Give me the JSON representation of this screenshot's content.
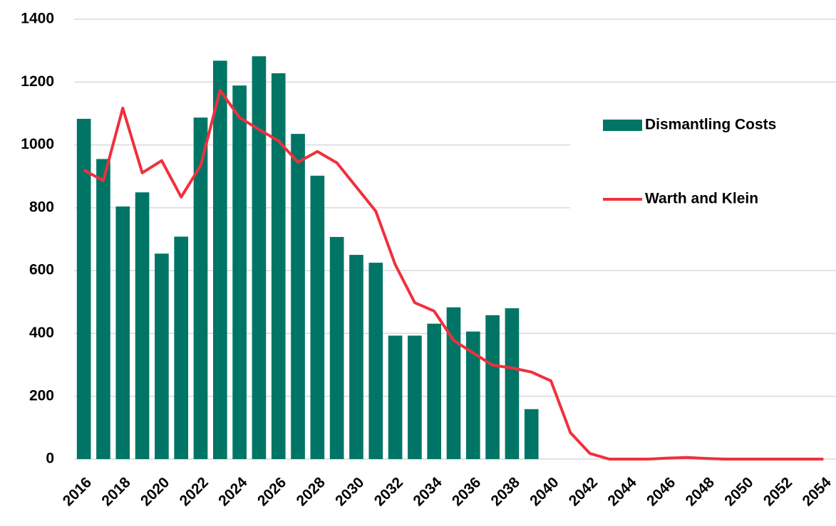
{
  "chart_data": {
    "type": "bar",
    "categories": [
      "2016",
      null,
      "2018",
      null,
      "2020",
      null,
      "2022",
      null,
      "2024",
      null,
      "2026",
      null,
      "2028",
      null,
      "2030",
      null,
      "2032",
      null,
      "2034",
      null,
      "2036",
      null,
      "2038",
      null,
      "2040",
      null,
      "2042",
      null,
      "2044",
      null,
      "2046",
      null,
      "2048",
      null,
      "2050",
      null,
      "2052",
      null,
      "2054"
    ],
    "series": [
      {
        "name": "Dismantling Costs",
        "type": "bar",
        "color": "#007566",
        "values": [
          1083,
          955,
          804,
          849,
          654,
          708,
          1087,
          1268,
          1189,
          1282,
          1228,
          1035,
          902,
          707,
          650,
          625,
          393,
          393,
          431,
          483,
          406,
          458,
          480,
          159,
          null,
          null,
          null,
          null,
          null,
          null,
          null,
          null,
          null,
          null,
          null,
          null,
          null,
          null,
          null
        ]
      },
      {
        "name": "Warth and Klein",
        "type": "line",
        "color": "#f0303c",
        "values": [
          920,
          886,
          1117,
          911,
          950,
          834,
          934,
          1174,
          1087,
          1049,
          1013,
          945,
          979,
          943,
          866,
          789,
          619,
          498,
          471,
          378,
          338,
          299,
          290,
          277,
          249,
          84,
          18,
          0,
          0,
          0,
          3,
          5,
          2,
          0,
          0,
          0,
          0,
          0,
          0
        ]
      }
    ],
    "ylim": [
      0,
      1400
    ],
    "yticks": [
      0,
      200,
      400,
      600,
      800,
      1000,
      1200,
      1400
    ],
    "grid": true,
    "legend": "right"
  }
}
